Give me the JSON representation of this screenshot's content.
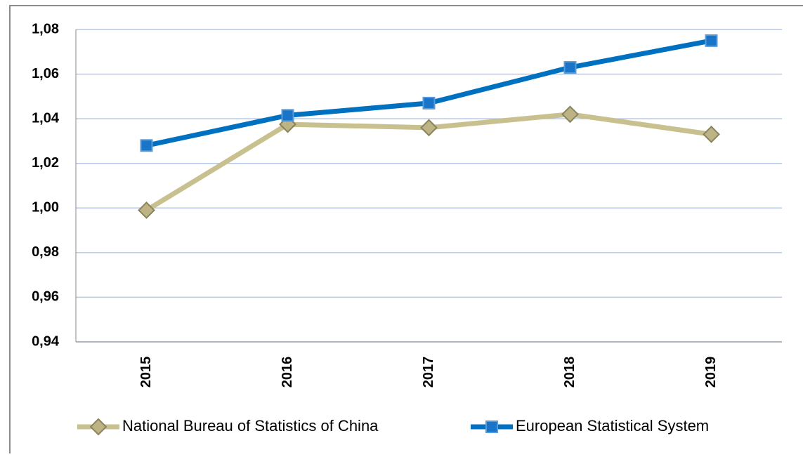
{
  "chart_data": {
    "type": "line",
    "categories": [
      "2015",
      "2016",
      "2017",
      "2018",
      "2019"
    ],
    "series": [
      {
        "name": "National Bureau of Statistics of China",
        "color": "#c8c08e",
        "marker": "diamond",
        "values": [
          0.999,
          1.0375,
          1.036,
          1.042,
          1.033
        ]
      },
      {
        "name": "European Statistical System",
        "color": "#0070c0",
        "marker": "square",
        "values": [
          1.028,
          1.0415,
          1.047,
          1.063,
          1.075
        ]
      }
    ],
    "ylim": [
      0.94,
      1.08
    ],
    "yticks": [
      {
        "value": 0.94,
        "label": "0,94"
      },
      {
        "value": 0.96,
        "label": "0,96"
      },
      {
        "value": 0.98,
        "label": "0,98"
      },
      {
        "value": 1.0,
        "label": "1,00"
      },
      {
        "value": 1.02,
        "label": "1,02"
      },
      {
        "value": 1.04,
        "label": "1,04"
      },
      {
        "value": 1.06,
        "label": "1,06"
      },
      {
        "value": 1.08,
        "label": "1,08"
      }
    ],
    "grid": true,
    "legend": "bottom"
  }
}
